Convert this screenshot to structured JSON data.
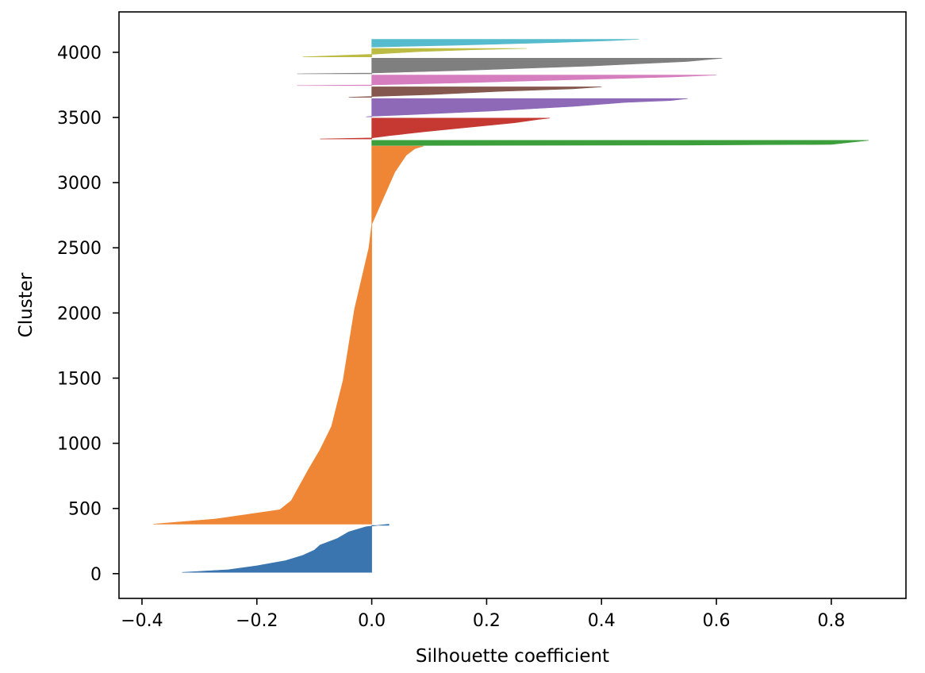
{
  "chart_data": {
    "type": "area",
    "title": "",
    "xlabel": "Silhouette coefficient",
    "ylabel": "Cluster",
    "xlim": [
      -0.44,
      0.93
    ],
    "ylim": [
      -190,
      4310
    ],
    "xticks": [
      -0.4,
      -0.2,
      0.0,
      0.2,
      0.4,
      0.6,
      0.8
    ],
    "xtick_labels": [
      "−0.4",
      "−0.2",
      "0.0",
      "0.2",
      "0.4",
      "0.6",
      "0.8"
    ],
    "yticks": [
      0,
      500,
      1000,
      1500,
      2000,
      2500,
      3000,
      3500,
      4000
    ],
    "ytick_labels": [
      "0",
      "500",
      "1000",
      "1500",
      "2000",
      "2500",
      "3000",
      "3500",
      "4000"
    ],
    "grid": false,
    "legend": "none",
    "clusters": [
      {
        "color": "#3a75af",
        "y_start": 10,
        "y_end": 370,
        "profile": [
          [
            0,
            -0.33
          ],
          [
            20,
            -0.25
          ],
          [
            50,
            -0.2
          ],
          [
            90,
            -0.15
          ],
          [
            130,
            -0.12
          ],
          [
            170,
            -0.1
          ],
          [
            210,
            -0.09
          ],
          [
            260,
            -0.06
          ],
          [
            310,
            -0.04
          ],
          [
            350,
            -0.01
          ],
          [
            365,
            0.02
          ],
          [
            370,
            0.03
          ]
        ]
      },
      {
        "color": "#ef8636",
        "y_start": 380,
        "y_end": 3280,
        "profile": [
          [
            0,
            -0.38
          ],
          [
            40,
            -0.27
          ],
          [
            110,
            -0.16
          ],
          [
            180,
            -0.14
          ],
          [
            420,
            -0.11
          ],
          [
            570,
            -0.09
          ],
          [
            750,
            -0.07
          ],
          [
            1100,
            -0.05
          ],
          [
            1650,
            -0.03
          ],
          [
            2120,
            -0.005
          ],
          [
            2300,
            0.0
          ],
          [
            2500,
            0.02
          ],
          [
            2700,
            0.04
          ],
          [
            2830,
            0.06
          ],
          [
            2880,
            0.075
          ],
          [
            2900,
            0.09
          ]
        ]
      },
      {
        "color": "#3c9f3c",
        "y_start": 3285,
        "y_end": 3325,
        "profile": [
          [
            0,
            0.06
          ],
          [
            3,
            0.55
          ],
          [
            8,
            0.8
          ],
          [
            40,
            0.865
          ]
        ]
      },
      {
        "color": "#c53932",
        "y_start": 3335,
        "y_end": 3495,
        "profile": [
          [
            0,
            -0.09
          ],
          [
            8,
            0.0
          ],
          [
            25,
            0.03
          ],
          [
            55,
            0.09
          ],
          [
            90,
            0.17
          ],
          [
            125,
            0.25
          ],
          [
            150,
            0.29
          ],
          [
            160,
            0.31
          ]
        ]
      },
      {
        "color": "#8d69b8",
        "y_start": 3505,
        "y_end": 3645,
        "profile": [
          [
            0,
            -0.01
          ],
          [
            4,
            0.0
          ],
          [
            15,
            0.06
          ],
          [
            45,
            0.21
          ],
          [
            80,
            0.35
          ],
          [
            110,
            0.44
          ],
          [
            125,
            0.52
          ],
          [
            140,
            0.55
          ]
        ]
      },
      {
        "color": "#84584e",
        "y_start": 3655,
        "y_end": 3735,
        "profile": [
          [
            0,
            -0.04
          ],
          [
            6,
            0.0
          ],
          [
            20,
            0.1
          ],
          [
            45,
            0.22
          ],
          [
            65,
            0.35
          ],
          [
            80,
            0.4
          ]
        ]
      },
      {
        "color": "#d57dbe",
        "y_start": 3745,
        "y_end": 3825,
        "profile": [
          [
            0,
            -0.13
          ],
          [
            5,
            0.0
          ],
          [
            20,
            0.15
          ],
          [
            45,
            0.35
          ],
          [
            65,
            0.52
          ],
          [
            80,
            0.6
          ]
        ]
      },
      {
        "color": "#7f7f7f",
        "y_start": 3835,
        "y_end": 3955,
        "profile": [
          [
            0,
            -0.13
          ],
          [
            6,
            0.0
          ],
          [
            25,
            0.15
          ],
          [
            60,
            0.38
          ],
          [
            95,
            0.55
          ],
          [
            120,
            0.61
          ]
        ]
      },
      {
        "color": "#bcbc45",
        "y_start": 3965,
        "y_end": 4030,
        "profile": [
          [
            0,
            -0.12
          ],
          [
            20,
            0.0
          ],
          [
            40,
            0.08
          ],
          [
            55,
            0.18
          ],
          [
            65,
            0.27
          ]
        ]
      },
      {
        "color": "#56bbcc",
        "y_start": 4040,
        "y_end": 4100,
        "profile": [
          [
            0,
            0.0
          ],
          [
            15,
            0.15
          ],
          [
            35,
            0.32
          ],
          [
            50,
            0.42
          ],
          [
            60,
            0.465
          ]
        ]
      }
    ]
  }
}
